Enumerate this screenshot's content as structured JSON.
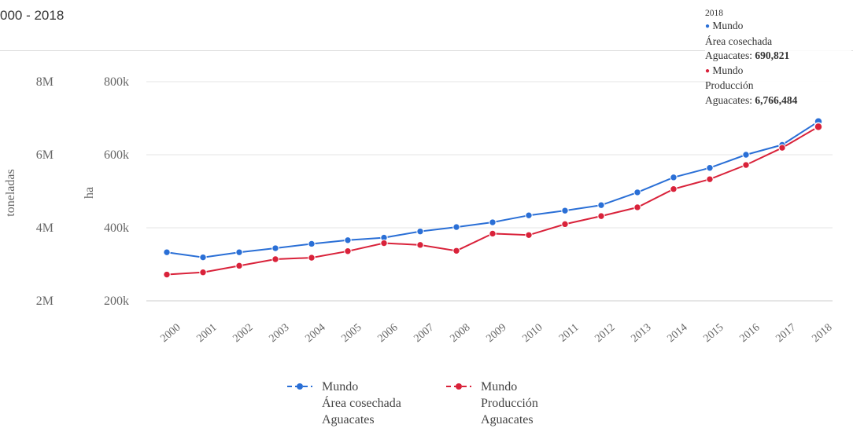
{
  "header": {
    "period": "000 - 2018"
  },
  "tooltip": {
    "year": "2018",
    "items": [
      {
        "marker": "●",
        "region": "Mundo",
        "element": "Área cosechada",
        "label": "Aguacates:",
        "value": "690,821",
        "color": "#2a6fd6"
      },
      {
        "marker": "●",
        "region": "Mundo",
        "element": "Producción",
        "label": "Aguacates:",
        "value": "6,766,484",
        "color": "#d9223a"
      }
    ]
  },
  "chart_data": {
    "type": "line",
    "x": [
      "2000",
      "2001",
      "2002",
      "2003",
      "2004",
      "2005",
      "2006",
      "2007",
      "2008",
      "2009",
      "2010",
      "2011",
      "2012",
      "2013",
      "2014",
      "2015",
      "2016",
      "2017",
      "2018"
    ],
    "axes": {
      "left_outer": {
        "title": "toneladas",
        "ticks": [
          "2M",
          "4M",
          "6M",
          "8M"
        ],
        "range": [
          2000000,
          8000000
        ]
      },
      "left_inner": {
        "title": "ha",
        "ticks": [
          "200k",
          "400k",
          "600k",
          "800k"
        ],
        "range": [
          200000,
          800000
        ]
      }
    },
    "grid": true,
    "legend_position": "bottom",
    "series": [
      {
        "name_lines": [
          "Mundo",
          "Área cosechada",
          "Aguacates"
        ],
        "axis": "left_inner",
        "color": "#2a6fd6",
        "values": [
          333000,
          319000,
          333000,
          344000,
          356000,
          366000,
          373000,
          390000,
          402000,
          415000,
          434000,
          447000,
          462000,
          497000,
          538000,
          564000,
          600000,
          627000,
          690821
        ]
      },
      {
        "name_lines": [
          "Mundo",
          "Producción",
          "Aguacates"
        ],
        "axis": "left_outer",
        "color": "#d9223a",
        "values": [
          2720000,
          2780000,
          2960000,
          3140000,
          3180000,
          3360000,
          3580000,
          3530000,
          3370000,
          3840000,
          3800000,
          4100000,
          4320000,
          4560000,
          5060000,
          5330000,
          5720000,
          6190000,
          6766484
        ]
      }
    ]
  }
}
